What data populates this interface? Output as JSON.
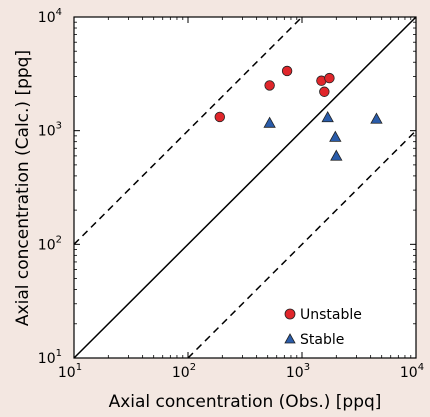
{
  "chart_data": {
    "type": "scatter",
    "x_scale": "log",
    "y_scale": "log",
    "xlabel": "Axial concentration (Obs.) [ppq]",
    "ylabel": "Axial concentration (Calc.) [ppq]",
    "xlim": [
      10,
      10000
    ],
    "ylim": [
      10,
      10000
    ],
    "x_ticks": [
      {
        "base": "10",
        "exp": "1",
        "value": 10
      },
      {
        "base": "10",
        "exp": "2",
        "value": 100
      },
      {
        "base": "10",
        "exp": "3",
        "value": 1000
      },
      {
        "base": "10",
        "exp": "4",
        "value": 10000
      }
    ],
    "y_ticks": [
      {
        "base": "10",
        "exp": "1",
        "value": 10
      },
      {
        "base": "10",
        "exp": "2",
        "value": 100
      },
      {
        "base": "10",
        "exp": "3",
        "value": 1000
      },
      {
        "base": "10",
        "exp": "4",
        "value": 10000
      }
    ],
    "grid": false,
    "legend_position": "bottom-right",
    "reference_lines": [
      {
        "style": "solid",
        "factor": 1
      },
      {
        "style": "dashed",
        "factor": 10
      },
      {
        "style": "dashed",
        "factor": 0.1
      }
    ],
    "series": [
      {
        "name": "Unstable",
        "marker": "circle",
        "color": "#e0262b",
        "points": [
          {
            "x": 190,
            "y": 1320
          },
          {
            "x": 520,
            "y": 2500
          },
          {
            "x": 740,
            "y": 3350
          },
          {
            "x": 1480,
            "y": 2750
          },
          {
            "x": 1570,
            "y": 2200
          },
          {
            "x": 1740,
            "y": 2900
          }
        ]
      },
      {
        "name": "Stable",
        "marker": "triangle",
        "color": "#2a5caa",
        "points": [
          {
            "x": 520,
            "y": 1170
          },
          {
            "x": 1680,
            "y": 1310
          },
          {
            "x": 1960,
            "y": 880
          },
          {
            "x": 2000,
            "y": 600
          },
          {
            "x": 4500,
            "y": 1270
          }
        ]
      }
    ]
  }
}
